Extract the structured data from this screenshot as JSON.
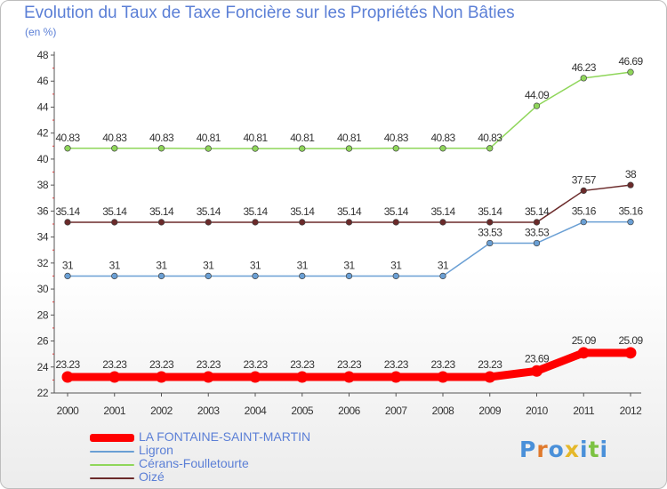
{
  "title": "Evolution du Taux de Taxe Foncière sur les Propriétés Non Bâties",
  "subtitle": "(en %)",
  "logo": {
    "text": "Proxiti",
    "colors": [
      "#4a90d9",
      "#e07a2d",
      "#4a90d9",
      "#e5b82a",
      "#4a90d9",
      "#7cc242",
      "#4a90d9"
    ]
  },
  "chart_data": {
    "type": "line",
    "title": "Evolution du Taux de Taxe Foncière sur les Propriétés Non Bâties",
    "ylabel": "(en %)",
    "xlabel": "",
    "ylim": [
      22,
      48
    ],
    "yticks": [
      22,
      24,
      26,
      28,
      30,
      32,
      34,
      36,
      38,
      40,
      42,
      44,
      46,
      48
    ],
    "categories": [
      "2000",
      "2001",
      "2002",
      "2003",
      "2004",
      "2005",
      "2006",
      "2007",
      "2008",
      "2009",
      "2010",
      "2011",
      "2012"
    ],
    "series": [
      {
        "name": "LA FONTAINE-SAINT-MARTIN",
        "color": "#ff0000",
        "values": [
          23.23,
          23.23,
          23.23,
          23.23,
          23.23,
          23.23,
          23.23,
          23.23,
          23.23,
          23.23,
          23.69,
          25.09,
          25.09
        ],
        "labels": [
          "23.23",
          "23.23",
          "23.23",
          "23.23",
          "23.23",
          "23.23",
          "23.23",
          "23.23",
          "23.23",
          "23.23",
          "23.69",
          "25.09",
          "25.09"
        ]
      },
      {
        "name": "Ligron",
        "color": "#6a9fd4",
        "values": [
          31,
          31,
          31,
          31,
          31,
          31,
          31,
          31,
          31,
          33.53,
          33.53,
          35.16,
          35.16
        ],
        "labels": [
          "31",
          "31",
          "31",
          "31",
          "31",
          "31",
          "31",
          "31",
          "31",
          "33.53",
          "33.53",
          "35.16",
          "35.16"
        ]
      },
      {
        "name": "Cérans-Foulletourte",
        "color": "#8fd65a",
        "values": [
          40.83,
          40.83,
          40.83,
          40.81,
          40.81,
          40.81,
          40.81,
          40.83,
          40.83,
          40.83,
          44.09,
          46.23,
          46.69
        ],
        "labels": [
          "40.83",
          "40.83",
          "40.83",
          "40.81",
          "40.81",
          "40.81",
          "40.81",
          "40.83",
          "40.83",
          "40.83",
          "44.09",
          "46.23",
          "46.69"
        ]
      },
      {
        "name": "Oizé",
        "color": "#6b2a2a",
        "values": [
          35.14,
          35.14,
          35.14,
          35.14,
          35.14,
          35.14,
          35.14,
          35.14,
          35.14,
          35.14,
          35.14,
          37.57,
          38
        ],
        "labels": [
          "35.14",
          "35.14",
          "35.14",
          "35.14",
          "35.14",
          "35.14",
          "35.14",
          "35.14",
          "35.14",
          "35.14",
          "35.14",
          "37.57",
          "38"
        ]
      }
    ],
    "legend_position": "bottom-left",
    "grid": false
  }
}
